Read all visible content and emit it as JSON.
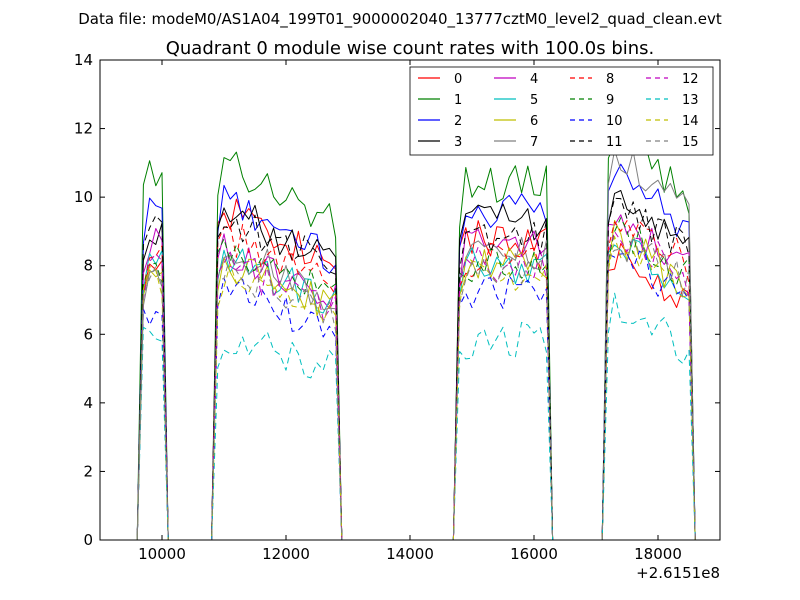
{
  "chart_data": {
    "type": "line",
    "suptitle": "Data file: modeM0/AS1A04_199T01_9000002040_13777cztM0_level2_quad_clean.evt",
    "title": "Quadrant 0 module wise count rates with 100.0s bins.",
    "xlabel": "",
    "ylabel": "",
    "x_offset_label": "+2.6151e8",
    "xlim": [
      9000,
      19000
    ],
    "ylim": [
      0,
      14
    ],
    "xticks": [
      10000,
      12000,
      14000,
      16000,
      18000
    ],
    "xtick_labels": [
      "10000",
      "12000",
      "14000",
      "16000",
      "18000"
    ],
    "yticks": [
      0,
      2,
      4,
      6,
      8,
      10,
      12,
      14
    ],
    "ytick_labels": [
      "0",
      "2",
      "4",
      "6",
      "8",
      "10",
      "12",
      "14"
    ],
    "grid": false,
    "legend": {
      "placement": "top-right",
      "columns": 4
    },
    "segments": [
      {
        "x_start": 9700,
        "x_end": 10000,
        "step": 100
      },
      {
        "x_start": 10900,
        "x_end": 12800,
        "step": 100
      },
      {
        "x_start": 14800,
        "x_end": 16200,
        "step": 100
      },
      {
        "x_start": 17200,
        "x_end": 18500,
        "step": 100
      }
    ],
    "series": [
      {
        "name": "0",
        "color": "#ff0000",
        "style": "solid",
        "levels": [
          8.4,
          9.8,
          8.8,
          8.5
        ]
      },
      {
        "name": "1",
        "color": "#008000",
        "style": "solid",
        "levels": [
          10.8,
          11.2,
          10.4,
          12.0
        ]
      },
      {
        "name": "2",
        "color": "#0000ff",
        "style": "solid",
        "levels": [
          9.9,
          10.0,
          9.6,
          11.0
        ]
      },
      {
        "name": "3",
        "color": "#000000",
        "style": "solid",
        "levels": [
          8.8,
          9.8,
          9.3,
          10.2
        ]
      },
      {
        "name": "4",
        "color": "#bf00bf",
        "style": "solid",
        "levels": [
          8.6,
          8.6,
          8.6,
          9.6
        ]
      },
      {
        "name": "5",
        "color": "#00bfbf",
        "style": "solid",
        "levels": [
          8.0,
          8.4,
          8.0,
          8.8
        ]
      },
      {
        "name": "6",
        "color": "#bfbf00",
        "style": "solid",
        "levels": [
          7.6,
          8.2,
          8.0,
          9.0
        ]
      },
      {
        "name": "7",
        "color": "#808080",
        "style": "solid",
        "levels": [
          7.8,
          8.6,
          8.4,
          11.6
        ]
      },
      {
        "name": "8",
        "color": "#ff0000",
        "style": "dashed",
        "levels": [
          8.2,
          9.0,
          8.2,
          9.8
        ]
      },
      {
        "name": "9",
        "color": "#008000",
        "style": "dashed",
        "levels": [
          8.0,
          8.6,
          8.0,
          9.4
        ]
      },
      {
        "name": "10",
        "color": "#0000ff",
        "style": "dashed",
        "levels": [
          6.8,
          7.4,
          7.2,
          8.6
        ]
      },
      {
        "name": "11",
        "color": "#000000",
        "style": "dashed",
        "levels": [
          9.0,
          9.6,
          8.8,
          10.2
        ]
      },
      {
        "name": "12",
        "color": "#bf00bf",
        "style": "dashed",
        "levels": [
          8.0,
          8.2,
          8.0,
          9.2
        ]
      },
      {
        "name": "13",
        "color": "#00bfbf",
        "style": "dashed",
        "levels": [
          6.2,
          6.0,
          5.8,
          6.8
        ]
      },
      {
        "name": "14",
        "color": "#bfbf00",
        "style": "dashed",
        "levels": [
          7.6,
          7.8,
          7.8,
          8.8
        ]
      },
      {
        "name": "15",
        "color": "#808080",
        "style": "dashed",
        "levels": [
          7.8,
          8.0,
          8.0,
          9.0
        ]
      }
    ]
  }
}
